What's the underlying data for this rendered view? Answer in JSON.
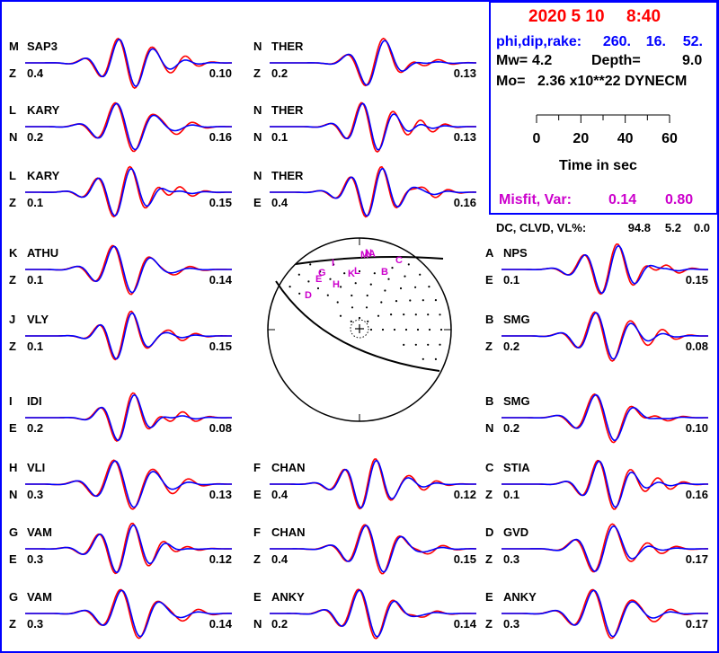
{
  "header": {
    "date": "2020  5 10",
    "time": "8:40",
    "mech_label": "phi,dip,rake:",
    "phi": "260.",
    "dip": "16.",
    "rake": "52.",
    "mw_label": "Mw=",
    "mw": "4.2",
    "depth_label": "Depth=",
    "depth": "9.0",
    "mo_label": "Mo=",
    "mo": "2.36 x10**22 DYNECM",
    "time_caption": "Time  in sec",
    "misfit_label": "Misfit, Var:",
    "misfit": "0.14",
    "var": "0.80",
    "dc_label": "DC, CLVD, VL%:",
    "dc": "94.8",
    "clvd": "5.2",
    "vl": "0.0"
  },
  "chart_data": {
    "type": "line",
    "time_axis": {
      "ticks": [
        "0",
        "20",
        "40",
        "60"
      ],
      "range": [
        0,
        60
      ],
      "unit": "sec"
    },
    "series_colors": {
      "observed": "#ff0000",
      "synthetic": "#0000ff"
    },
    "traces": [
      {
        "col": 0,
        "row": 0,
        "letter": "M",
        "station": "SAP3",
        "comp": "Z",
        "weight": "0.4",
        "amp": "0.10"
      },
      {
        "col": 0,
        "row": 1,
        "letter": "L",
        "station": "KARY",
        "comp": "N",
        "weight": "0.2",
        "amp": "0.16"
      },
      {
        "col": 0,
        "row": 2,
        "letter": "L",
        "station": "KARY",
        "comp": "Z",
        "weight": "0.1",
        "amp": "0.15"
      },
      {
        "col": 0,
        "row": 3,
        "letter": "K",
        "station": "ATHU",
        "comp": "Z",
        "weight": "0.1",
        "amp": "0.14"
      },
      {
        "col": 0,
        "row": 4,
        "letter": "J",
        "station": "VLY",
        "comp": "Z",
        "weight": "0.1",
        "amp": "0.15"
      },
      {
        "col": 0,
        "row": 5,
        "letter": "I",
        "station": "IDI",
        "comp": "E",
        "weight": "0.2",
        "amp": "0.08"
      },
      {
        "col": 0,
        "row": 6,
        "letter": "H",
        "station": "VLI",
        "comp": "N",
        "weight": "0.3",
        "amp": "0.13"
      },
      {
        "col": 0,
        "row": 7,
        "letter": "G",
        "station": "VAM",
        "comp": "E",
        "weight": "0.3",
        "amp": "0.12"
      },
      {
        "col": 0,
        "row": 8,
        "letter": "G",
        "station": "VAM",
        "comp": "Z",
        "weight": "0.3",
        "amp": "0.14"
      },
      {
        "col": 1,
        "row": 0,
        "letter": "N",
        "station": "THER",
        "comp": "Z",
        "weight": "0.2",
        "amp": "0.13"
      },
      {
        "col": 1,
        "row": 1,
        "letter": "N",
        "station": "THER",
        "comp": "N",
        "weight": "0.1",
        "amp": "0.13"
      },
      {
        "col": 1,
        "row": 2,
        "letter": "N",
        "station": "THER",
        "comp": "E",
        "weight": "0.4",
        "amp": "0.16"
      },
      {
        "col": 1,
        "row": 6,
        "letter": "F",
        "station": "CHAN",
        "comp": "E",
        "weight": "0.4",
        "amp": "0.12"
      },
      {
        "col": 1,
        "row": 7,
        "letter": "F",
        "station": "CHAN",
        "comp": "Z",
        "weight": "0.4",
        "amp": "0.15"
      },
      {
        "col": 1,
        "row": 8,
        "letter": "E",
        "station": "ANKY",
        "comp": "N",
        "weight": "0.2",
        "amp": "0.14"
      },
      {
        "col": 2,
        "row": 3,
        "letter": "A",
        "station": "NPS",
        "comp": "E",
        "weight": "0.1",
        "amp": "0.15"
      },
      {
        "col": 2,
        "row": 4,
        "letter": "B",
        "station": "SMG",
        "comp": "Z",
        "weight": "0.2",
        "amp": "0.08"
      },
      {
        "col": 2,
        "row": 5,
        "letter": "B",
        "station": "SMG",
        "comp": "N",
        "weight": "0.2",
        "amp": "0.10"
      },
      {
        "col": 2,
        "row": 6,
        "letter": "C",
        "station": "STIA",
        "comp": "Z",
        "weight": "0.1",
        "amp": "0.16"
      },
      {
        "col": 2,
        "row": 7,
        "letter": "D",
        "station": "GVD",
        "comp": "Z",
        "weight": "0.3",
        "amp": "0.17"
      },
      {
        "col": 2,
        "row": 8,
        "letter": "E",
        "station": "ANKY",
        "comp": "Z",
        "weight": "0.3",
        "amp": "0.17"
      }
    ],
    "beachball_station_labels": [
      "A",
      "B",
      "C",
      "D",
      "E",
      "G",
      "H",
      "I",
      "K",
      "L",
      "M",
      "N"
    ]
  }
}
